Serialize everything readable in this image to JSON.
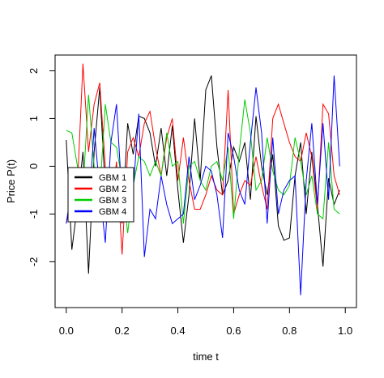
{
  "chart_data": {
    "type": "line",
    "title": "",
    "xlabel": "time t",
    "ylabel": "Price P(t)",
    "xlim": [
      -0.04,
      1.04
    ],
    "ylim": [
      -2.96,
      2.33
    ],
    "xticks": [
      0.0,
      0.2,
      0.4,
      0.6,
      0.8,
      1.0
    ],
    "xtick_labels": [
      "0.0",
      "0.2",
      "0.4",
      "0.6",
      "0.8",
      "1.0"
    ],
    "yticks": [
      -2,
      -1,
      0,
      1,
      2
    ],
    "ytick_labels": [
      "-2",
      "-1",
      "0",
      "1",
      "2"
    ],
    "grid": false,
    "legend_position": "left",
    "x": [
      0.0,
      0.02,
      0.04,
      0.06,
      0.08,
      0.1,
      0.12,
      0.14,
      0.16,
      0.18,
      0.2,
      0.22,
      0.24,
      0.26,
      0.28,
      0.3,
      0.32,
      0.34,
      0.36,
      0.38,
      0.4,
      0.42,
      0.44,
      0.46,
      0.48,
      0.5,
      0.52,
      0.54,
      0.56,
      0.58,
      0.6,
      0.62,
      0.64,
      0.66,
      0.68,
      0.7,
      0.72,
      0.74,
      0.76,
      0.78,
      0.8,
      0.82,
      0.84,
      0.86,
      0.88,
      0.9,
      0.92,
      0.94,
      0.96,
      0.98
    ],
    "series": [
      {
        "name": "GBM 1",
        "color": "#000000",
        "values": [
          0.55,
          -1.75,
          -0.8,
          0.3,
          -2.25,
          0.3,
          1.65,
          -0.5,
          -0.9,
          -0.6,
          -1.2,
          0.9,
          0.25,
          1.05,
          1.0,
          0.7,
          0.0,
          0.8,
          -0.2,
          0.85,
          -0.5,
          -1.6,
          -0.6,
          1.0,
          -0.3,
          1.6,
          1.9,
          0.4,
          -0.6,
          -0.3,
          0.4,
          0.1,
          0.5,
          -0.7,
          1.05,
          0.0,
          -0.6,
          0.25,
          -1.25,
          -1.55,
          -1.5,
          -0.2,
          0.5,
          -1.0,
          0.3,
          -0.8,
          -2.1,
          -0.25,
          -0.8,
          -0.5
        ]
      },
      {
        "name": "GBM 2",
        "color": "#ff0000",
        "values": [
          -1.2,
          -0.6,
          -0.4,
          2.15,
          0.3,
          1.3,
          1.75,
          0.0,
          -1.0,
          0.1,
          -1.85,
          0.3,
          0.6,
          0.2,
          0.9,
          1.15,
          0.4,
          -0.2,
          0.6,
          1.0,
          -0.3,
          0.6,
          -0.3,
          -0.9,
          -0.9,
          -0.6,
          -0.2,
          -0.5,
          -0.6,
          1.6,
          -1.0,
          -0.6,
          -0.3,
          -0.4,
          0.2,
          -0.4,
          -0.9,
          1.0,
          1.3,
          0.9,
          0.5,
          0.2,
          0.1,
          0.7,
          0.2,
          -0.9,
          1.3,
          1.1,
          -0.2,
          -0.6
        ]
      },
      {
        "name": "GBM 3",
        "color": "#00cc00",
        "values": [
          0.75,
          0.7,
          0.0,
          -0.5,
          1.5,
          0.0,
          -0.6,
          1.3,
          0.5,
          0.4,
          -0.3,
          -1.4,
          -0.4,
          0.2,
          0.1,
          -0.2,
          0.1,
          -0.2,
          0.7,
          0.0,
          0.1,
          -1.2,
          0.0,
          0.1,
          -0.3,
          -0.5,
          0.0,
          0.1,
          -0.3,
          0.4,
          -1.1,
          0.3,
          1.4,
          0.7,
          -0.5,
          -0.3,
          0.6,
          -0.1,
          -0.5,
          -0.6,
          -0.4,
          0.6,
          0.1,
          -0.6,
          -0.2,
          -1.0,
          -1.1,
          0.5,
          -0.9,
          -1.0
        ]
      },
      {
        "name": "GBM 4",
        "color": "#0000ff",
        "values": [
          -1.2,
          -0.4,
          -0.9,
          -0.7,
          -1.0,
          0.8,
          -0.5,
          -1.6,
          0.5,
          1.3,
          -0.7,
          -0.3,
          -0.5,
          1.1,
          -1.9,
          -0.9,
          -1.1,
          -0.2,
          -0.8,
          -1.2,
          -1.1,
          -1.0,
          0.2,
          -0.7,
          -0.4,
          0.0,
          -0.1,
          -0.6,
          -1.5,
          0.7,
          0.2,
          -0.5,
          -0.8,
          0.5,
          1.65,
          0.7,
          -1.2,
          0.6,
          -1.0,
          -0.5,
          -0.3,
          -0.2,
          -2.7,
          -0.3,
          0.9,
          -0.8,
          0.9,
          -0.7,
          1.9,
          0.0
        ]
      }
    ]
  }
}
